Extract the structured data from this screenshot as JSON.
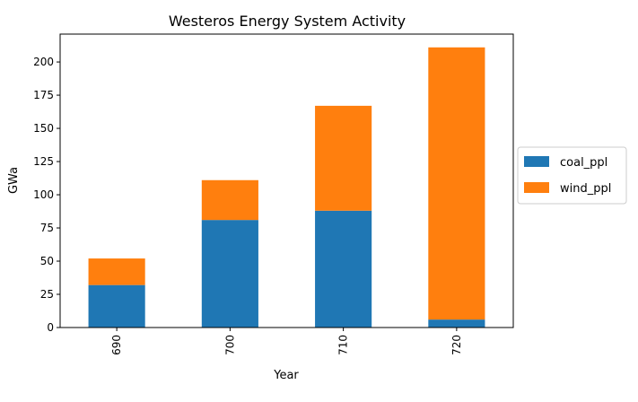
{
  "chart_data": {
    "type": "bar",
    "stacked": true,
    "title": "Westeros Energy System Activity",
    "xlabel": "Year",
    "ylabel": "GWa",
    "categories": [
      "690",
      "700",
      "710",
      "720"
    ],
    "series": [
      {
        "name": "coal_ppl",
        "color": "#1f77b4",
        "values": [
          32,
          81,
          88,
          6
        ]
      },
      {
        "name": "wind_ppl",
        "color": "#ff7f0e",
        "values": [
          20,
          30,
          79,
          205
        ]
      }
    ],
    "ylim": [
      0,
      221
    ],
    "yticks": [
      0,
      25,
      50,
      75,
      100,
      125,
      150,
      175,
      200
    ],
    "grid": false,
    "legend_position": "right"
  }
}
